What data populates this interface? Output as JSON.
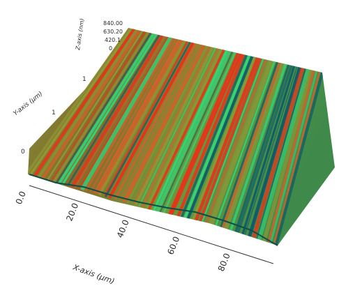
{
  "figure": {
    "axes": {
      "x": {
        "title": "X-axis (µm)",
        "ticks": [
          "0.0",
          "20.0",
          "40.0",
          "60.0",
          "80.0"
        ]
      },
      "y": {
        "title": "Y-axis (µm)"
      },
      "z": {
        "title": "Z-axis (nm)",
        "tick_labels": [
          "840.00",
          "630.20",
          "420.1",
          "0"
        ],
        "height_ticks": [
          "0",
          "1"
        ]
      }
    },
    "colors": {
      "low": "#0a5c6a",
      "mid_green": "#2fd67a",
      "mid_olive": "#8f9a35",
      "high_orange": "#d3612a",
      "peak_red": "#e8331a"
    }
  }
}
